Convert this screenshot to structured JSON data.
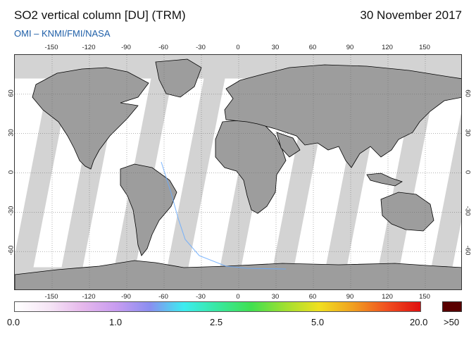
{
  "header": {
    "title": "SO2 vertical column [DU] (TRM)",
    "date": "30 November 2017",
    "credit": "OMI  –  KNMI/FMI/NASA"
  },
  "map": {
    "projection": "equirectangular",
    "lon_ticks": [
      "-150",
      "-120",
      "-90",
      "-60",
      "-30",
      "0",
      "30",
      "60",
      "90",
      "120",
      "150"
    ],
    "lat_ticks": [
      "60",
      "30",
      "0",
      "-30",
      "-60"
    ],
    "colors": {
      "no_data": "#d3d3d3",
      "land": "#9d9d9d",
      "coastline": "#000000",
      "grid": "#666666"
    }
  },
  "colorbar": {
    "labels": [
      "0.0",
      "1.0",
      "2.5",
      "5.0",
      "20.0"
    ],
    "overflow_label": ">50",
    "overflow_color": "#5a0000",
    "gradient": [
      "#ffffff",
      "#f6e6f6",
      "#e6b8ec",
      "#c89cf0",
      "#8a8ef0",
      "#3cecf0",
      "#38e8a0",
      "#40e050",
      "#a0e030",
      "#f0e020",
      "#f0a020",
      "#f05020",
      "#e01010"
    ]
  }
}
